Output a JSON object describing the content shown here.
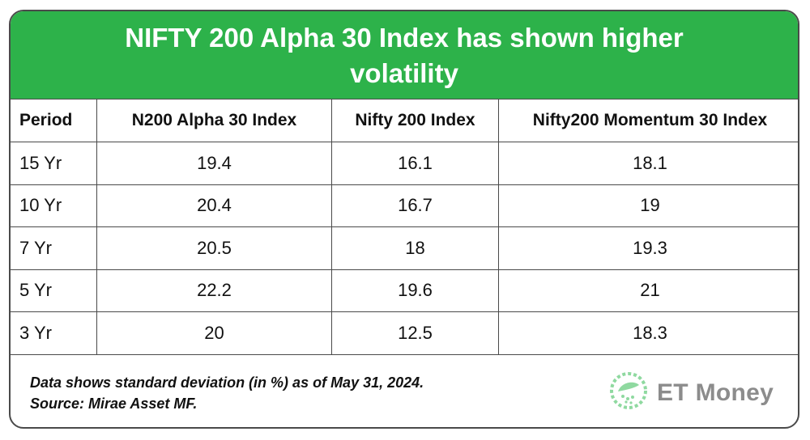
{
  "title": "NIFTY 200 Alpha 30 Index has shown higher volatility",
  "columns": [
    "Period",
    "N200 Alpha 30 Index",
    "Nifty 200 Index",
    "Nifty200 Momentum 30 Index"
  ],
  "rows": [
    [
      "15 Yr",
      "19.4",
      "16.1",
      "18.1"
    ],
    [
      "10 Yr",
      "20.4",
      "16.7",
      "19"
    ],
    [
      "7 Yr",
      "20.5",
      "18",
      "19.3"
    ],
    [
      "5 Yr",
      "22.2",
      "19.6",
      "21"
    ],
    [
      "3 Yr",
      "20",
      "12.5",
      "18.3"
    ]
  ],
  "footer": {
    "note": "Data shows standard deviation (in %) as of May 31, 2024.",
    "source": "Source: Mirae Asset MF."
  },
  "logo": {
    "text": "ET Money",
    "icon": "et-money-leaf-icon",
    "color": "#8fd9a0"
  },
  "colors": {
    "header": "#2db24a",
    "border": "#4a4a4a"
  },
  "chart_data": {
    "type": "table",
    "title": "NIFTY 200 Alpha 30 Index has shown higher volatility",
    "categories": [
      "15 Yr",
      "10 Yr",
      "7 Yr",
      "5 Yr",
      "3 Yr"
    ],
    "series": [
      {
        "name": "N200 Alpha 30 Index",
        "values": [
          19.4,
          20.4,
          20.5,
          22.2,
          20
        ]
      },
      {
        "name": "Nifty 200 Index",
        "values": [
          16.1,
          16.7,
          18,
          19.6,
          12.5
        ]
      },
      {
        "name": "Nifty200 Momentum 30 Index",
        "values": [
          18.1,
          19,
          19.3,
          21,
          18.3
        ]
      }
    ]
  }
}
